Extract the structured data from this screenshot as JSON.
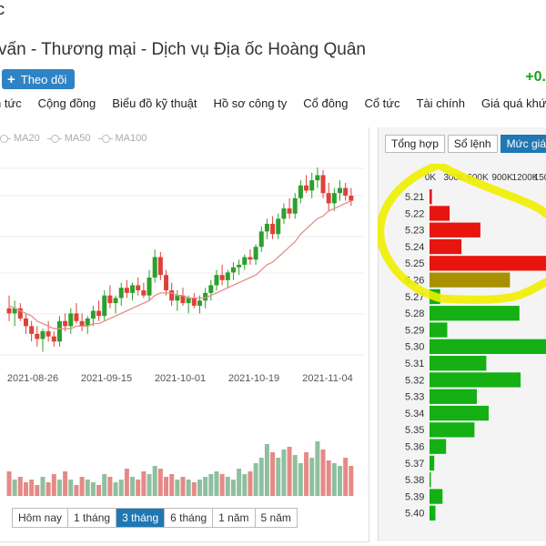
{
  "header": {
    "top_stub": "c",
    "title": "vấn - Thương mại - Dịch vụ Địa ốc Hoàng Quân",
    "follow_label": "Theo dõi",
    "change": "+0."
  },
  "nav": [
    "n tức",
    "Cộng đồng",
    "Biểu đồ kỹ thuật",
    "Hồ sơ công ty",
    "Cổ đông",
    "Cổ tức",
    "Tài chính",
    "Giá quá khứ"
  ],
  "legend": [
    "MA20",
    "MA50",
    "MA100"
  ],
  "chart_data": {
    "type": "candlestick",
    "x_ticks": [
      "2021-08-26",
      "2021-09-15",
      "2021-10-01",
      "2021-10-19",
      "2021-11-04"
    ],
    "colors": {
      "up": "#2ca02c",
      "down": "#e0403a",
      "ma": "#e3908a",
      "vol_up": "#8fbf9f",
      "vol_down": "#e58a86"
    },
    "candles": [
      {
        "o": 4.95,
        "h": 5.0,
        "l": 4.9,
        "c": 4.93
      },
      {
        "o": 4.93,
        "h": 4.98,
        "l": 4.88,
        "c": 4.95
      },
      {
        "o": 4.95,
        "h": 4.97,
        "l": 4.9,
        "c": 4.91
      },
      {
        "o": 4.91,
        "h": 4.93,
        "l": 4.85,
        "c": 4.88
      },
      {
        "o": 4.88,
        "h": 4.9,
        "l": 4.82,
        "c": 4.85
      },
      {
        "o": 4.85,
        "h": 4.88,
        "l": 4.8,
        "c": 4.83
      },
      {
        "o": 4.83,
        "h": 4.87,
        "l": 4.78,
        "c": 4.86
      },
      {
        "o": 4.86,
        "h": 4.9,
        "l": 4.82,
        "c": 4.84
      },
      {
        "o": 4.84,
        "h": 4.86,
        "l": 4.8,
        "c": 4.82
      },
      {
        "o": 4.82,
        "h": 4.92,
        "l": 4.8,
        "c": 4.9
      },
      {
        "o": 4.9,
        "h": 4.93,
        "l": 4.86,
        "c": 4.88
      },
      {
        "o": 4.88,
        "h": 4.95,
        "l": 4.85,
        "c": 4.93
      },
      {
        "o": 4.93,
        "h": 4.97,
        "l": 4.89,
        "c": 4.9
      },
      {
        "o": 4.9,
        "h": 4.93,
        "l": 4.86,
        "c": 4.88
      },
      {
        "o": 4.88,
        "h": 4.92,
        "l": 4.85,
        "c": 4.91
      },
      {
        "o": 4.91,
        "h": 4.96,
        "l": 4.88,
        "c": 4.94
      },
      {
        "o": 4.94,
        "h": 4.98,
        "l": 4.9,
        "c": 4.92
      },
      {
        "o": 4.92,
        "h": 5.02,
        "l": 4.9,
        "c": 5.0
      },
      {
        "o": 5.0,
        "h": 5.04,
        "l": 4.95,
        "c": 4.97
      },
      {
        "o": 4.97,
        "h": 5.0,
        "l": 4.93,
        "c": 4.99
      },
      {
        "o": 4.99,
        "h": 5.05,
        "l": 4.96,
        "c": 5.03
      },
      {
        "o": 5.03,
        "h": 5.06,
        "l": 4.99,
        "c": 5.01
      },
      {
        "o": 5.01,
        "h": 5.05,
        "l": 4.98,
        "c": 5.04
      },
      {
        "o": 5.04,
        "h": 5.07,
        "l": 5.0,
        "c": 5.02
      },
      {
        "o": 5.02,
        "h": 5.05,
        "l": 4.99,
        "c": 5.0
      },
      {
        "o": 5.0,
        "h": 5.1,
        "l": 4.98,
        "c": 5.07
      },
      {
        "o": 5.07,
        "h": 5.18,
        "l": 5.05,
        "c": 5.15
      },
      {
        "o": 5.15,
        "h": 5.17,
        "l": 5.06,
        "c": 5.08
      },
      {
        "o": 5.08,
        "h": 5.1,
        "l": 5.0,
        "c": 5.02
      },
      {
        "o": 5.02,
        "h": 5.05,
        "l": 4.96,
        "c": 4.98
      },
      {
        "o": 4.98,
        "h": 5.02,
        "l": 4.94,
        "c": 5.0
      },
      {
        "o": 5.0,
        "h": 5.03,
        "l": 4.96,
        "c": 4.97
      },
      {
        "o": 4.97,
        "h": 5.0,
        "l": 4.93,
        "c": 4.99
      },
      {
        "o": 4.99,
        "h": 5.01,
        "l": 4.95,
        "c": 4.96
      },
      {
        "o": 4.96,
        "h": 5.0,
        "l": 4.93,
        "c": 4.98
      },
      {
        "o": 4.98,
        "h": 5.03,
        "l": 4.95,
        "c": 5.01
      },
      {
        "o": 5.01,
        "h": 5.06,
        "l": 4.98,
        "c": 5.04
      },
      {
        "o": 5.04,
        "h": 5.1,
        "l": 5.02,
        "c": 5.08
      },
      {
        "o": 5.08,
        "h": 5.12,
        "l": 5.04,
        "c": 5.06
      },
      {
        "o": 5.06,
        "h": 5.1,
        "l": 5.03,
        "c": 5.09
      },
      {
        "o": 5.09,
        "h": 5.13,
        "l": 5.06,
        "c": 5.11
      },
      {
        "o": 5.11,
        "h": 5.14,
        "l": 5.08,
        "c": 5.12
      },
      {
        "o": 5.12,
        "h": 5.16,
        "l": 5.1,
        "c": 5.15
      },
      {
        "o": 5.15,
        "h": 5.18,
        "l": 5.12,
        "c": 5.14
      },
      {
        "o": 5.14,
        "h": 5.2,
        "l": 5.12,
        "c": 5.19
      },
      {
        "o": 5.19,
        "h": 5.27,
        "l": 5.17,
        "c": 5.25
      },
      {
        "o": 5.25,
        "h": 5.3,
        "l": 5.22,
        "c": 5.28
      },
      {
        "o": 5.28,
        "h": 5.31,
        "l": 5.22,
        "c": 5.24
      },
      {
        "o": 5.24,
        "h": 5.32,
        "l": 5.22,
        "c": 5.3
      },
      {
        "o": 5.3,
        "h": 5.36,
        "l": 5.28,
        "c": 5.34
      },
      {
        "o": 5.34,
        "h": 5.38,
        "l": 5.3,
        "c": 5.32
      },
      {
        "o": 5.32,
        "h": 5.4,
        "l": 5.3,
        "c": 5.38
      },
      {
        "o": 5.38,
        "h": 5.45,
        "l": 5.36,
        "c": 5.43
      },
      {
        "o": 5.43,
        "h": 5.47,
        "l": 5.4,
        "c": 5.41
      },
      {
        "o": 5.41,
        "h": 5.48,
        "l": 5.38,
        "c": 5.45
      },
      {
        "o": 5.45,
        "h": 5.5,
        "l": 5.42,
        "c": 5.47
      },
      {
        "o": 5.47,
        "h": 5.49,
        "l": 5.38,
        "c": 5.4
      },
      {
        "o": 5.4,
        "h": 5.44,
        "l": 5.33,
        "c": 5.36
      },
      {
        "o": 5.36,
        "h": 5.42,
        "l": 5.33,
        "c": 5.4
      },
      {
        "o": 5.4,
        "h": 5.45,
        "l": 5.37,
        "c": 5.42
      },
      {
        "o": 5.42,
        "h": 5.44,
        "l": 5.37,
        "c": 5.39
      },
      {
        "o": 5.39,
        "h": 5.42,
        "l": 5.35,
        "c": 5.37
      }
    ],
    "ma": [
      4.96,
      4.95,
      4.94,
      4.93,
      4.92,
      4.9,
      4.89,
      4.88,
      4.87,
      4.87,
      4.87,
      4.87,
      4.88,
      4.88,
      4.88,
      4.89,
      4.89,
      4.9,
      4.91,
      4.92,
      4.93,
      4.94,
      4.95,
      4.96,
      4.97,
      4.98,
      5.0,
      5.01,
      5.01,
      5.01,
      5.0,
      5.0,
      4.99,
      4.99,
      4.99,
      4.99,
      5.0,
      5.01,
      5.02,
      5.03,
      5.04,
      5.05,
      5.06,
      5.07,
      5.08,
      5.1,
      5.12,
      5.13,
      5.15,
      5.17,
      5.19,
      5.21,
      5.24,
      5.26,
      5.28,
      5.3,
      5.31,
      5.33,
      5.34,
      5.35,
      5.36,
      5.37
    ],
    "volumes": [
      0.45,
      0.3,
      0.35,
      0.25,
      0.3,
      0.2,
      0.35,
      0.25,
      0.4,
      0.3,
      0.45,
      0.3,
      0.2,
      0.35,
      0.3,
      0.25,
      0.2,
      0.4,
      0.35,
      0.25,
      0.3,
      0.5,
      0.35,
      0.3,
      0.45,
      0.4,
      0.55,
      0.5,
      0.35,
      0.4,
      0.3,
      0.35,
      0.3,
      0.25,
      0.3,
      0.35,
      0.4,
      0.45,
      0.4,
      0.35,
      0.3,
      0.5,
      0.4,
      0.45,
      0.6,
      0.7,
      0.95,
      0.8,
      0.7,
      0.85,
      0.9,
      0.75,
      0.6,
      0.8,
      0.7,
      1.0,
      0.85,
      0.65,
      0.6,
      0.55,
      0.7,
      0.55,
      0.35
    ],
    "ylim": [
      4.75,
      5.55
    ]
  },
  "ranges": [
    "Hôm nay",
    "1 tháng",
    "3 tháng",
    "6 tháng",
    "1 năm",
    "5 năm"
  ],
  "ranges_active": 2,
  "panel": {
    "tabs": [
      "Tổng hợp",
      "Sổ lệnh",
      "Mức giá"
    ],
    "active_tab": 2,
    "axis_labels": [
      "0K",
      "300K",
      "600K",
      "900K",
      "1200K",
      "150"
    ],
    "depth": [
      {
        "price": "5.21",
        "value": 0.02,
        "color": "#e8150e"
      },
      {
        "price": "5.22",
        "value": 0.17,
        "color": "#e8150e"
      },
      {
        "price": "5.23",
        "value": 0.43,
        "color": "#e8150e"
      },
      {
        "price": "5.24",
        "value": 0.27,
        "color": "#e8150e"
      },
      {
        "price": "5.25",
        "value": 1.0,
        "color": "#e8150e"
      },
      {
        "price": "5.26",
        "value": 0.68,
        "color": "#a89000"
      },
      {
        "price": "5.27",
        "value": 0.09,
        "color": "#14b014"
      },
      {
        "price": "5.28",
        "value": 0.76,
        "color": "#14b014"
      },
      {
        "price": "5.29",
        "value": 0.15,
        "color": "#14b014"
      },
      {
        "price": "5.30",
        "value": 1.0,
        "color": "#14b014"
      },
      {
        "price": "5.31",
        "value": 0.48,
        "color": "#14b014"
      },
      {
        "price": "5.32",
        "value": 0.77,
        "color": "#14b014"
      },
      {
        "price": "5.33",
        "value": 0.4,
        "color": "#14b014"
      },
      {
        "price": "5.34",
        "value": 0.5,
        "color": "#14b014"
      },
      {
        "price": "5.35",
        "value": 0.38,
        "color": "#14b014"
      },
      {
        "price": "5.36",
        "value": 0.14,
        "color": "#14b014"
      },
      {
        "price": "5.37",
        "value": 0.04,
        "color": "#14b014"
      },
      {
        "price": "5.38",
        "value": 0.01,
        "color": "#14b014"
      },
      {
        "price": "5.39",
        "value": 0.11,
        "color": "#14b014"
      },
      {
        "price": "5.40",
        "value": 0.05,
        "color": "#14b014"
      }
    ]
  },
  "highlight_color": "#f0f000"
}
